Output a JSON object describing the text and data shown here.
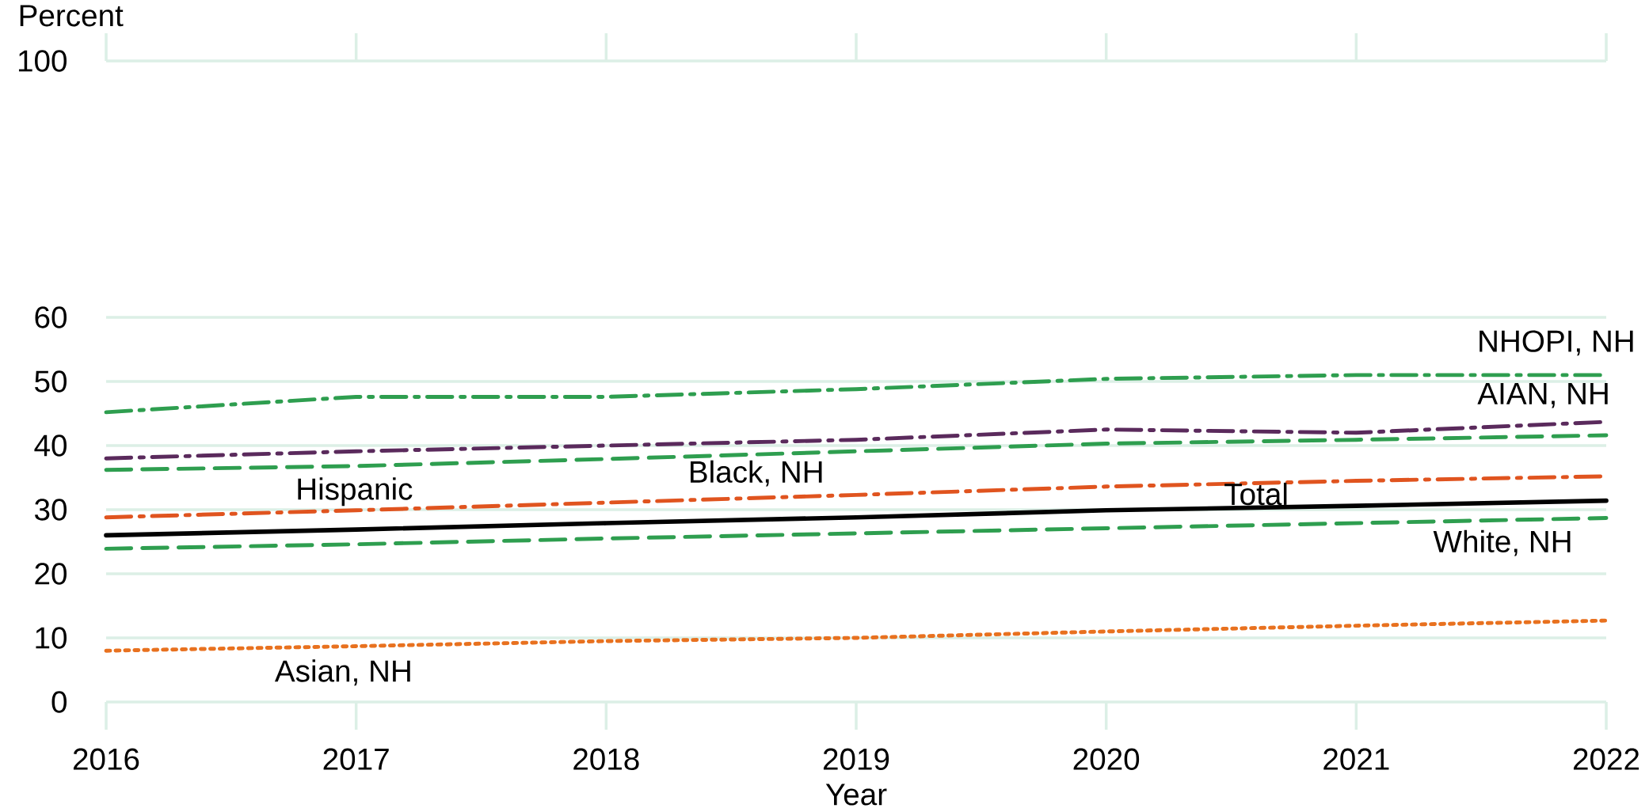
{
  "chart_data": {
    "type": "line",
    "xlabel": "Year",
    "ylabel": "Percent",
    "x": [
      2016,
      2017,
      2018,
      2019,
      2020,
      2021,
      2022
    ],
    "xlim": [
      2016,
      2022
    ],
    "xticks": [
      2016,
      2017,
      2018,
      2019,
      2020,
      2021,
      2022
    ],
    "ylim": [
      0,
      100
    ],
    "yticks": [
      0,
      10,
      20,
      30,
      40,
      50,
      60,
      100
    ],
    "grid": "y",
    "legend": false,
    "marker": "none",
    "series": [
      {
        "name": "NHOPI, NH",
        "color": "#2e9e4f",
        "line_style": "dashdot",
        "values": [
          45.2,
          47.6,
          47.6,
          48.8,
          50.4,
          51.0,
          51.0
        ]
      },
      {
        "name": "AIAN, NH",
        "color": "#5a2a5c",
        "line_style": "dashdot",
        "values": [
          38.0,
          39.1,
          40.0,
          40.9,
          42.5,
          42.0,
          43.7
        ]
      },
      {
        "name": "Black, NH",
        "color": "#2e9e4f",
        "line_style": "dashed",
        "values": [
          36.2,
          36.8,
          37.9,
          39.1,
          40.3,
          40.9,
          41.6
        ]
      },
      {
        "name": "Hispanic",
        "color": "#e0541f",
        "line_style": "dashdot",
        "values": [
          28.8,
          29.9,
          31.1,
          32.3,
          33.6,
          34.5,
          35.2
        ]
      },
      {
        "name": "Total",
        "color": "#000000",
        "line_style": "solid",
        "values": [
          26.0,
          26.9,
          27.9,
          28.8,
          29.9,
          30.6,
          31.4
        ]
      },
      {
        "name": "White, NH",
        "color": "#2e9e4f",
        "line_style": "dashed",
        "values": [
          23.9,
          24.6,
          25.5,
          26.3,
          27.1,
          27.9,
          28.7
        ]
      },
      {
        "name": "Asian, NH",
        "color": "#e8711f",
        "line_style": "dotted",
        "values": [
          8.0,
          8.7,
          9.5,
          10.0,
          11.0,
          11.9,
          12.7
        ]
      }
    ]
  }
}
